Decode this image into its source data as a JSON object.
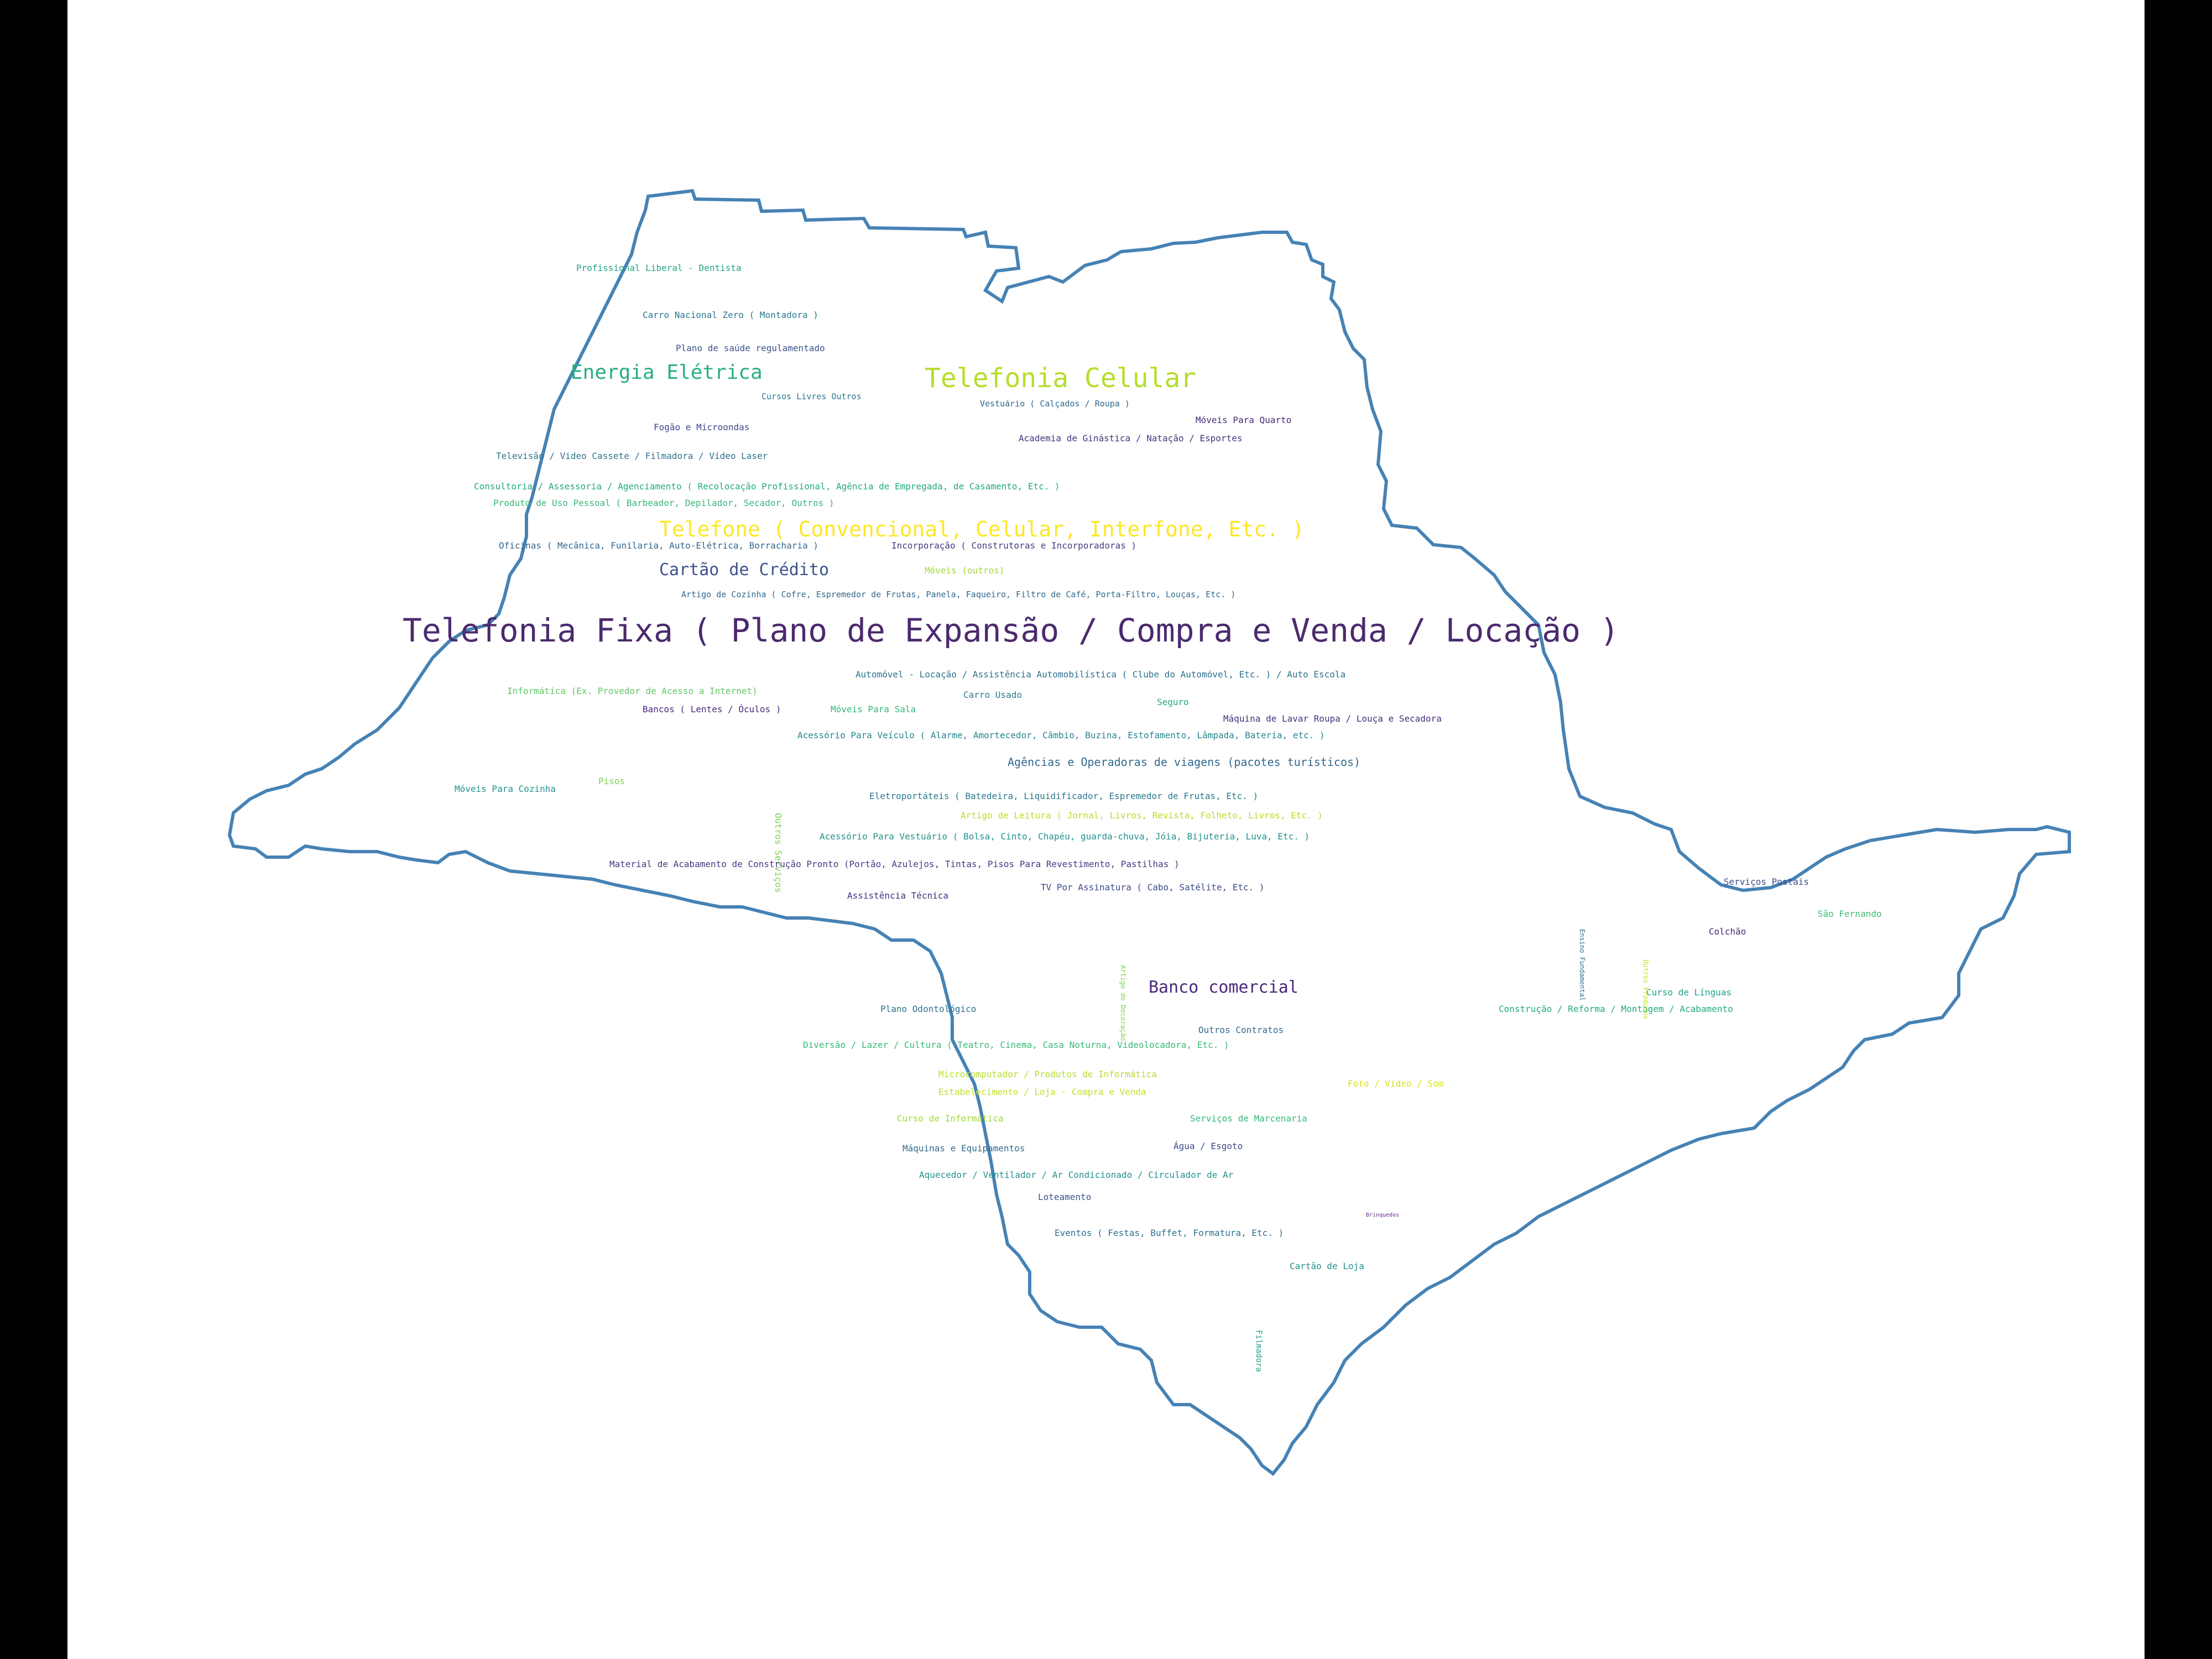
{
  "colors": {
    "background": "#ffffff",
    "frame": "#000000",
    "outline": "#4682b4"
  },
  "words": [
    {
      "text": "Telefonia Fixa ( Plano de Expansão / Compra e Venda / Locação )",
      "color": "#4b2a6e"
    },
    {
      "text": "Telefonia Celular",
      "color": "#b5de2b"
    },
    {
      "text": "Telefone ( Convencional, Celular, Interfone, Etc. )",
      "color": "#fde725"
    },
    {
      "text": "Energia Elétrica",
      "color": "#29af7f"
    },
    {
      "text": "Cartão de Crédito",
      "color": "#3b528b"
    },
    {
      "text": "Banco comercial",
      "color": "#482878"
    },
    {
      "text": "Agências e Operadoras de viagens (pacotes turísticos)",
      "color": "#31688e"
    },
    {
      "text": "Profissional Liberal - Dentista",
      "color": "#20a386"
    },
    {
      "text": "Carro Nacional Zero ( Montadora )",
      "color": "#2a788e"
    },
    {
      "text": "Plano de saúde regulamentado",
      "color": "#3b528b"
    },
    {
      "text": "Cursos Livres Outros",
      "color": "#2a788e"
    },
    {
      "text": "Vestuário ( Calçados / Roupa )",
      "color": "#31688e"
    },
    {
      "text": "Fogão e Microondas",
      "color": "#414487"
    },
    {
      "text": "Móveis Para Quarto",
      "color": "#482878"
    },
    {
      "text": "Academia de Ginástica / Natação / Esportes",
      "color": "#46327e"
    },
    {
      "text": "Televisão / Video Cassete / Filmadora / Vídeo Laser",
      "color": "#2c728e"
    },
    {
      "text": "Consultoria / Assessoria / Agenciamento ( Recolocação Profissional, Agência de Empregada, de Casamento, Etc. )",
      "color": "#22a884"
    },
    {
      "text": "Produto de Uso Pessoal ( Barbeador, Depilador, Secador, Outros )",
      "color": "#35b779"
    },
    {
      "text": "Oficinas ( Mecânica, Funilaria, Auto-Elétrica, Borracharia )",
      "color": "#31688e"
    },
    {
      "text": "Incorporação ( Construtoras e Incorporadoras )",
      "color": "#443983"
    },
    {
      "text": "Móveis (outros)",
      "color": "#a0da39"
    },
    {
      "text": "Artigo de Cozinha ( Cofre, Espremedor de Frutas, Panela, Faqueiro, Filtro de Café, Porta-Filtro, Louças, Etc. )",
      "color": "#31688e"
    },
    {
      "text": "Automóvel - Locação / Assistência Automobilística ( Clube do Automóvel, Etc. ) / Auto Escola",
      "color": "#2c728e"
    },
    {
      "text": "Informática (Ex. Provedor de Acesso a Internet)",
      "color": "#5ec962"
    },
    {
      "text": "Carro Usado",
      "color": "#2a788e"
    },
    {
      "text": "Seguro",
      "color": "#22a884"
    },
    {
      "text": "Bancos ( Lentes / Óculos )",
      "color": "#482878"
    },
    {
      "text": "Móveis Para Sala",
      "color": "#35b779"
    },
    {
      "text": "Máquina de Lavar Roupa / Louça e Secadora",
      "color": "#472d7b"
    },
    {
      "text": "Acessório Para Veículo ( Alarme, Amortecedor, Câmbio, Buzina, Estofamento, Lâmpada, Bateria, etc. )",
      "color": "#25858e"
    },
    {
      "text": "Outros Serviços",
      "color": "#7ad151"
    },
    {
      "text": "Móveis Para Cozinha",
      "color": "#21918c"
    },
    {
      "text": "Pisos",
      "color": "#7ad151"
    },
    {
      "text": "Eletroportáteis ( Batedeira, Liquidificador, Espremedor de Frutas, Etc. )",
      "color": "#2a788e"
    },
    {
      "text": "Artigo de Leitura ( Jornal, Livros, Revista, Folheto, Livros, Etc. )",
      "color": "#b5de2b"
    },
    {
      "text": "Acessório Para Vestuário ( Bolsa, Cinto, Chapéu, guarda-chuva, Jóia, Bijuteria, Luva, Etc. )",
      "color": "#21918c"
    },
    {
      "text": "Material de Acabamento de Construção Pronto (Portão, Azulejos, Tintas, Pisos Para Revestimento, Pastilhas )",
      "color": "#443983"
    },
    {
      "text": "TV Por Assinatura ( Cabo, Satélite, Etc. )",
      "color": "#3e4989"
    },
    {
      "text": "Assistência Técnica",
      "color": "#472c7a"
    },
    {
      "text": "Serviços Postais",
      "color": "#3e4989"
    },
    {
      "text": "São Fernando",
      "color": "#3dbc74"
    },
    {
      "text": "Colchão",
      "color": "#482475"
    },
    {
      "text": "Curso de Línguas",
      "color": "#1f9e89"
    },
    {
      "text": "Construção / Reforma / Montagem / Acabamento",
      "color": "#22a884"
    },
    {
      "text": "Plano Odontológico",
      "color": "#2c728e"
    },
    {
      "text": "Outros Contratos",
      "color": "#31688e"
    },
    {
      "text": "Diversão / Lazer / Cultura ( Teatro, Cinema, Casa Noturna, Videolocadora, Etc. )",
      "color": "#38b977"
    },
    {
      "text": "Microcomputador / Produtos de Informática",
      "color": "#b5de2b"
    },
    {
      "text": "Estabelecimento / Loja - Compra e Venda",
      "color": "#c2df23"
    },
    {
      "text": "Foto / Vídeo / Som",
      "color": "#d8e219"
    },
    {
      "text": "Curso de Informática",
      "color": "#a0da39"
    },
    {
      "text": "Serviços de Marcenaria",
      "color": "#35b779"
    },
    {
      "text": "Água / Esgoto",
      "color": "#3e4989"
    },
    {
      "text": "Máquinas e Equipamentos",
      "color": "#31688e"
    },
    {
      "text": "Aquecedor / Ventilador / Ar Condicionado / Circulador de Ar",
      "color": "#21918c"
    },
    {
      "text": "Loteamento",
      "color": "#3b528b"
    },
    {
      "text": "Eventos ( Festas, Buffet, Formatura, Etc. )",
      "color": "#2c728e"
    },
    {
      "text": "Cartão de Loja",
      "color": "#21918c"
    },
    {
      "text": "Filmadora",
      "color": "#1f9e89"
    },
    {
      "text": "Brinquedos",
      "color": "#6b2a84"
    },
    {
      "text": "Ensino Fundamental",
      "color": "#2c728e"
    },
    {
      "text": "Outros Produtos",
      "color": "#c8e020"
    },
    {
      "text": "Artigo de Decoração",
      "color": "#7ad151"
    }
  ]
}
